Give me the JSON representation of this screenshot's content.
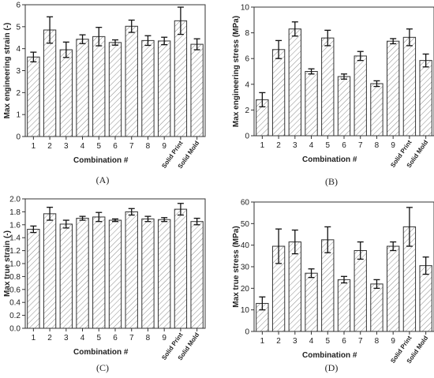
{
  "chart_data": [
    {
      "type": "bar",
      "panel_label": "(A)",
      "categories": [
        "1",
        "2",
        "3",
        "4",
        "5",
        "6",
        "7",
        "8",
        "9",
        "Solid Print",
        "Solid Mold"
      ],
      "values": [
        3.62,
        4.85,
        3.95,
        4.43,
        4.55,
        4.28,
        5.02,
        4.37,
        4.35,
        5.27,
        4.2
      ],
      "errors": [
        0.22,
        0.6,
        0.35,
        0.2,
        0.42,
        0.12,
        0.28,
        0.22,
        0.17,
        0.62,
        0.25
      ],
      "xlabel": "Combination #",
      "ylabel": "Max engineering strain (-)",
      "ylim": [
        0,
        6
      ],
      "yticks": [
        0,
        1,
        2,
        3,
        4,
        5,
        6
      ],
      "bar_fill": "hatched",
      "color": "#333333"
    },
    {
      "type": "bar",
      "panel_label": "(B)",
      "categories": [
        "1",
        "2",
        "3",
        "4",
        "5",
        "6",
        "7",
        "8",
        "9",
        "Solid Print",
        "Solid Mold"
      ],
      "values": [
        2.8,
        6.7,
        8.3,
        5.0,
        7.6,
        4.6,
        6.2,
        4.05,
        7.35,
        7.65,
        5.85
      ],
      "errors": [
        0.55,
        0.7,
        0.55,
        0.2,
        0.6,
        0.2,
        0.35,
        0.22,
        0.2,
        0.65,
        0.5
      ],
      "xlabel": "Combination #",
      "ylabel": "Max engineering stress (MPa)",
      "ylim": [
        0,
        10
      ],
      "yticks": [
        0,
        2,
        4,
        6,
        8,
        10
      ],
      "bar_fill": "hatched",
      "color": "#333333"
    },
    {
      "type": "bar",
      "panel_label": "(C)",
      "categories": [
        "1",
        "2",
        "3",
        "4",
        "5",
        "6",
        "7",
        "8",
        "9",
        "Solid Print",
        "Solid Mold"
      ],
      "values": [
        1.53,
        1.77,
        1.61,
        1.7,
        1.72,
        1.67,
        1.8,
        1.69,
        1.68,
        1.84,
        1.65
      ],
      "errors": [
        0.05,
        0.1,
        0.06,
        0.03,
        0.07,
        0.02,
        0.05,
        0.04,
        0.03,
        0.09,
        0.05
      ],
      "xlabel": "Combination #",
      "ylabel": "Max true strain (-)",
      "ylim": [
        0,
        2.0
      ],
      "yticks": [
        0,
        0.2,
        0.4,
        0.6,
        0.8,
        1.0,
        1.2,
        1.4,
        1.6,
        1.8,
        2.0
      ],
      "ytick_labels": [
        "0.0",
        "0.2",
        "0.4",
        "0.6",
        "0.8",
        "1.0",
        "1.2",
        "1.4",
        "1.6",
        "1.8",
        "2.0"
      ],
      "bar_fill": "hatched",
      "color": "#333333"
    },
    {
      "type": "bar",
      "panel_label": "(D)",
      "categories": [
        "1",
        "2",
        "3",
        "4",
        "5",
        "6",
        "7",
        "8",
        "9",
        "Solid Print",
        "Solid Mold"
      ],
      "values": [
        13.0,
        39.5,
        41.5,
        27.0,
        42.5,
        24.0,
        37.5,
        22.0,
        39.5,
        48.5,
        30.5
      ],
      "errors": [
        3.0,
        8.0,
        5.5,
        2.0,
        6.0,
        1.5,
        4.0,
        2.0,
        2.0,
        9.0,
        4.0
      ],
      "xlabel": "Combination #",
      "ylabel": "Max true stress (MPa)",
      "ylim": [
        0,
        60
      ],
      "yticks": [
        0,
        10,
        20,
        30,
        40,
        50,
        60
      ],
      "bar_fill": "hatched",
      "color": "#333333"
    }
  ]
}
